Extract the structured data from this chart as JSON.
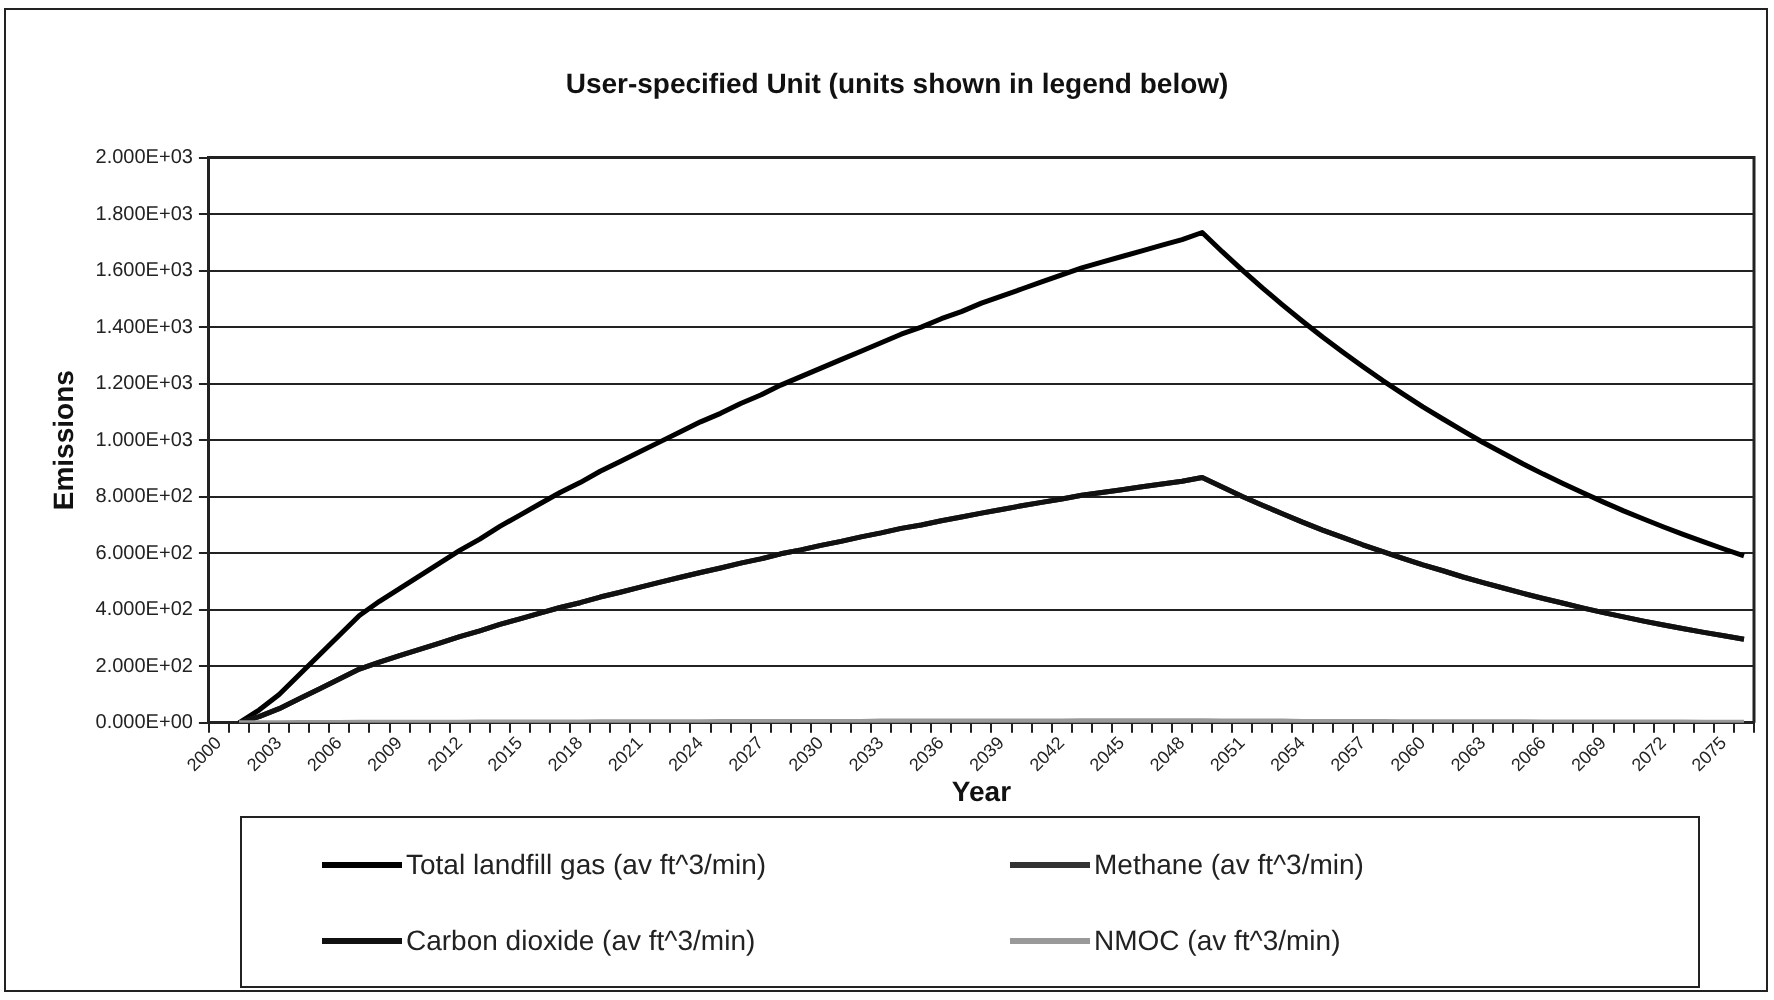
{
  "chart_data": {
    "type": "line",
    "title": "User-specified Unit (units shown in legend below)",
    "xlabel": "Year",
    "ylabel": "Emissions",
    "categories": [
      "2000",
      null,
      null,
      "2003",
      null,
      null,
      "2006",
      null,
      null,
      "2009",
      null,
      null,
      "2012",
      null,
      null,
      "2015",
      null,
      null,
      "2018",
      null,
      null,
      "2021",
      null,
      null,
      "2024",
      null,
      null,
      "2027",
      null,
      null,
      "2030",
      null,
      null,
      "2033",
      null,
      null,
      "2036",
      null,
      null,
      "2039",
      null,
      null,
      "2042",
      null,
      null,
      "2045",
      null,
      null,
      "2048",
      null,
      null,
      "2051",
      null,
      null,
      "2054",
      null,
      null,
      "2057",
      null,
      null,
      "2060",
      null,
      null,
      "2063",
      null,
      null,
      "2066",
      null,
      null,
      "2069",
      null,
      null,
      "2072",
      null,
      null,
      "2075",
      null
    ],
    "series": [
      {
        "name": "Total landfill gas (av ft^3/min)",
        "color": "#000000",
        "values": [
          null,
          0,
          45,
          100,
          170,
          240,
          310,
          380,
          430,
          475,
          520,
          565,
          610,
          650,
          695,
          735,
          775,
          815,
          850,
          890,
          925,
          960,
          995,
          1030,
          1065,
          1095,
          1130,
          1160,
          1195,
          1225,
          1255,
          1285,
          1315,
          1345,
          1375,
          1400,
          1430,
          1455,
          1485,
          1510,
          1535,
          1560,
          1585,
          1610,
          1630,
          1650,
          1670,
          1690,
          1710,
          1735,
          1667,
          1602,
          1539,
          1479,
          1421,
          1365,
          1312,
          1261,
          1211,
          1164,
          1118,
          1075,
          1033,
          992,
          954,
          916,
          880,
          846,
          813,
          781,
          750,
          721,
          693,
          666,
          640,
          615,
          591
        ]
      },
      {
        "name": "Methane (av ft^3/min)",
        "color": "#333333",
        "values": [
          null,
          0,
          22,
          50,
          85,
          120,
          155,
          190,
          215,
          238,
          260,
          282,
          305,
          325,
          348,
          368,
          388,
          408,
          425,
          445,
          462,
          480,
          498,
          515,
          532,
          548,
          565,
          580,
          598,
          612,
          628,
          642,
          658,
          672,
          688,
          700,
          715,
          728,
          742,
          755,
          768,
          780,
          792,
          805,
          815,
          825,
          835,
          845,
          855,
          868,
          834,
          801,
          770,
          740,
          710,
          682,
          656,
          630,
          606,
          582,
          559,
          538,
          516,
          496,
          477,
          458,
          440,
          423,
          406,
          390,
          375,
          360,
          346,
          333,
          320,
          308,
          296
        ]
      },
      {
        "name": "Carbon dioxide (av ft^3/min)",
        "color": "#111111",
        "values": [
          null,
          0,
          22,
          50,
          85,
          120,
          155,
          190,
          215,
          238,
          260,
          282,
          305,
          325,
          348,
          368,
          388,
          408,
          425,
          445,
          462,
          480,
          498,
          515,
          532,
          548,
          565,
          580,
          598,
          612,
          628,
          642,
          658,
          672,
          688,
          700,
          715,
          728,
          742,
          755,
          768,
          780,
          792,
          805,
          815,
          825,
          835,
          845,
          855,
          868,
          834,
          801,
          770,
          740,
          710,
          682,
          656,
          630,
          606,
          582,
          559,
          538,
          516,
          496,
          477,
          458,
          440,
          423,
          406,
          390,
          375,
          360,
          346,
          333,
          320,
          308,
          296
        ]
      },
      {
        "name": "NMOC (av ft^3/min)",
        "color": "#999999",
        "values": [
          null,
          0,
          0,
          0,
          1,
          1,
          1,
          2,
          2,
          2,
          2,
          2,
          2,
          3,
          3,
          3,
          3,
          3,
          3,
          4,
          4,
          4,
          4,
          4,
          4,
          5,
          5,
          5,
          5,
          5,
          5,
          5,
          5,
          6,
          6,
          6,
          6,
          6,
          6,
          6,
          6,
          6,
          6,
          7,
          7,
          7,
          7,
          7,
          7,
          7,
          6,
          6,
          6,
          6,
          5,
          5,
          5,
          5,
          5,
          4,
          4,
          4,
          4,
          4,
          4,
          4,
          3,
          3,
          3,
          3,
          3,
          3,
          3,
          3,
          2,
          2,
          2
        ]
      }
    ],
    "ylim": [
      0,
      2000
    ],
    "yticks": [
      {
        "value": 0,
        "label": "0.000E+00"
      },
      {
        "value": 200,
        "label": "2.000E+02"
      },
      {
        "value": 400,
        "label": "4.000E+02"
      },
      {
        "value": 600,
        "label": "6.000E+02"
      },
      {
        "value": 800,
        "label": "8.000E+02"
      },
      {
        "value": 1000,
        "label": "1.000E+03"
      },
      {
        "value": 1200,
        "label": "1.200E+03"
      },
      {
        "value": 1400,
        "label": "1.400E+03"
      },
      {
        "value": 1600,
        "label": "1.600E+03"
      },
      {
        "value": 1800,
        "label": "1.800E+03"
      },
      {
        "value": 2000,
        "label": "2.000E+03"
      }
    ],
    "grid": "y",
    "legend": "bottom",
    "marker": "none",
    "line_style": "solid"
  }
}
